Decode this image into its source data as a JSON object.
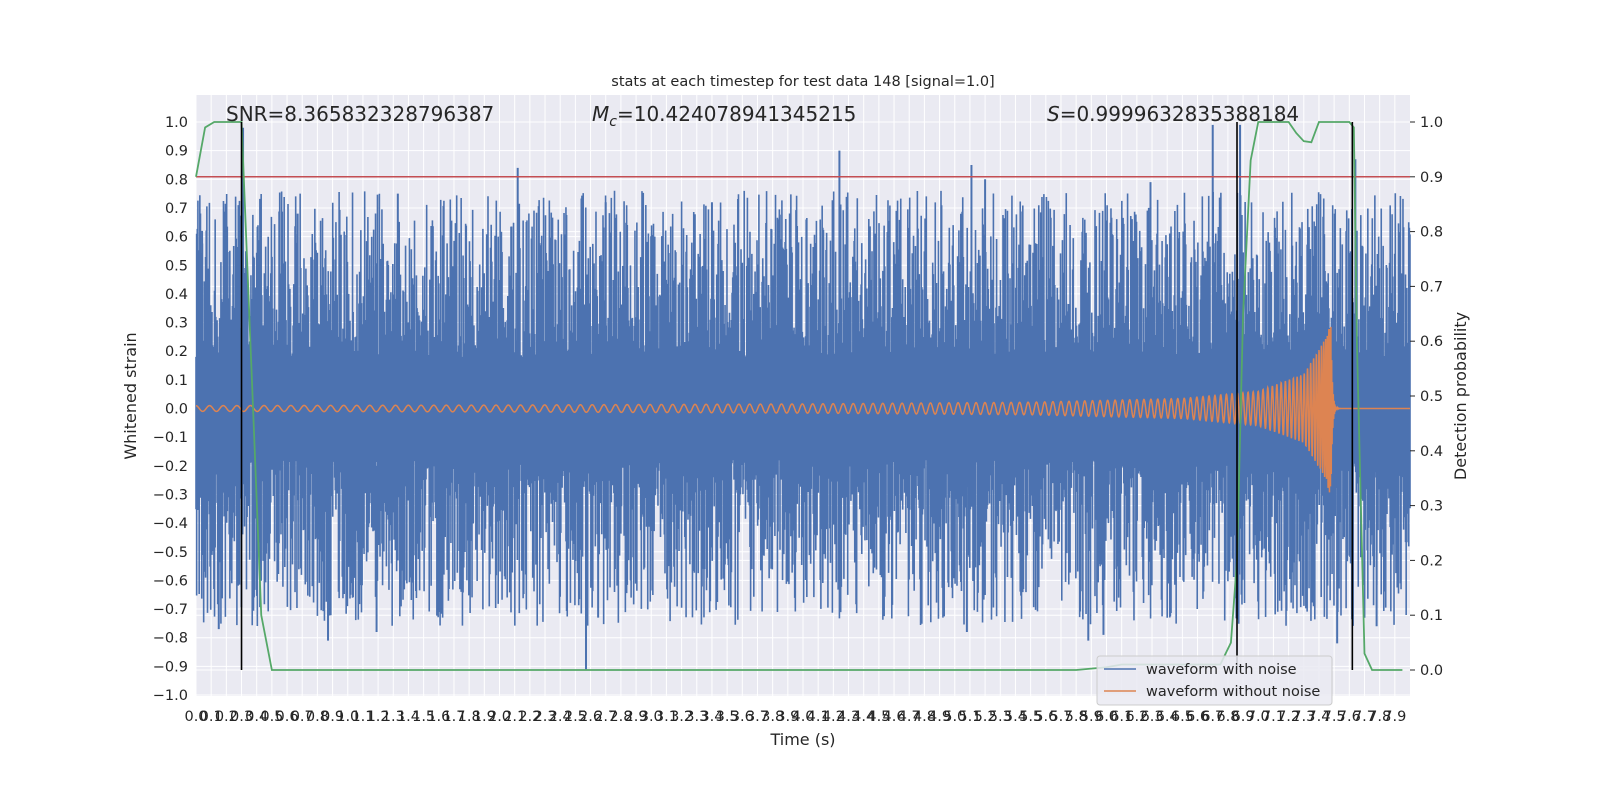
{
  "chart_data": {
    "type": "line",
    "title": "stats at each timestep for test data 148 [signal=1.0]",
    "xlabel": "Time (s)",
    "ylabel": "Whitened strain",
    "ylabel_right": "Detection probability",
    "xlim": [
      0.0,
      8.0
    ],
    "ylim": [
      -1.0,
      1.0
    ],
    "ylim_right": [
      -0.047,
      1.0
    ],
    "grid": true,
    "x_ticks": [
      "0.0",
      "0.1",
      "0.2",
      "0.3",
      "0.4",
      "0.5",
      "0.6",
      "0.7",
      "0.8",
      "0.9",
      "1.0",
      "1.1",
      "1.2",
      "1.3",
      "1.4",
      "1.5",
      "1.6",
      "1.7",
      "1.8",
      "1.9",
      "2.0",
      "2.1",
      "2.2",
      "2.3",
      "2.4",
      "2.5",
      "2.6",
      "2.7",
      "2.8",
      "2.9",
      "3.0",
      "3.1",
      "3.2",
      "3.3",
      "3.4",
      "3.5",
      "3.6",
      "3.7",
      "3.8",
      "3.9",
      "4.0",
      "4.1",
      "4.2",
      "4.3",
      "4.4",
      "4.5",
      "4.6",
      "4.7",
      "4.8",
      "4.9",
      "5.0",
      "5.1",
      "5.2",
      "5.3",
      "5.4",
      "5.5",
      "5.6",
      "5.7",
      "5.8",
      "5.9",
      "6.0",
      "6.1",
      "6.2",
      "6.3",
      "6.4",
      "6.5",
      "6.6",
      "6.7",
      "6.8",
      "6.9",
      "7.0",
      "7.1",
      "7.2",
      "7.3",
      "7.4",
      "7.5",
      "7.6",
      "7.7",
      "7.8",
      "7.9"
    ],
    "y_ticks_left": [
      "1.0",
      "0.9",
      "0.8",
      "0.7",
      "0.6",
      "0.5",
      "0.4",
      "0.3",
      "0.2",
      "0.1",
      "0.0",
      "−0.1",
      "−0.2",
      "−0.3",
      "−0.4",
      "−0.5",
      "−0.6",
      "−0.7",
      "−0.8",
      "−0.9",
      "−1.0"
    ],
    "y_ticks_right": [
      "1.0",
      "0.9",
      "0.8",
      "0.7",
      "0.6",
      "0.5",
      "0.4",
      "0.3",
      "0.2",
      "0.1",
      "0.0"
    ],
    "annotations": {
      "snr": "SNR=8.365832328796387",
      "mc_symbol": "M",
      "mc_sub": "c",
      "mc_value": "=10.424078941345215",
      "s_symbol": "S",
      "s_value": "=0.9999632835388184"
    },
    "legend": {
      "location": "lower right",
      "entries": [
        {
          "label": "waveform with noise",
          "color": "#4c72b0"
        },
        {
          "label": "waveform without noise",
          "color": "#dd8452"
        }
      ]
    },
    "series": [
      {
        "name": "waveform with noise",
        "color": "#4c72b0",
        "axis": "left",
        "typical_max": 0.48,
        "typical_min": -0.48,
        "peaks": [
          {
            "t": 0.04,
            "v": 0.62
          },
          {
            "t": 0.28,
            "v": 0.71
          },
          {
            "t": 0.31,
            "v": 0.98
          },
          {
            "t": 0.67,
            "v": 0.68
          },
          {
            "t": 1.33,
            "v": 0.75
          },
          {
            "t": 2.12,
            "v": 0.84
          },
          {
            "t": 2.7,
            "v": 0.72
          },
          {
            "t": 3.4,
            "v": 0.72
          },
          {
            "t": 4.24,
            "v": 0.9
          },
          {
            "t": 5.11,
            "v": 0.85
          },
          {
            "t": 5.2,
            "v": 0.8
          },
          {
            "t": 6.29,
            "v": 0.79
          },
          {
            "t": 6.7,
            "v": 0.99
          },
          {
            "t": 6.88,
            "v": 0.99
          },
          {
            "t": 7.64,
            "v": 0.87
          }
        ],
        "troughs": [
          {
            "t": 0.15,
            "v": -0.77
          },
          {
            "t": 0.87,
            "v": -0.81
          },
          {
            "t": 1.19,
            "v": -0.78
          },
          {
            "t": 2.57,
            "v": -0.91
          },
          {
            "t": 2.65,
            "v": -0.73
          },
          {
            "t": 5.08,
            "v": -0.78
          },
          {
            "t": 5.88,
            "v": -0.81
          },
          {
            "t": 5.98,
            "v": -0.79
          },
          {
            "t": 7.52,
            "v": -0.82
          },
          {
            "t": 7.78,
            "v": -0.76
          }
        ]
      },
      {
        "name": "waveform without noise",
        "color": "#dd8452",
        "axis": "left",
        "note": "chirp: amplitude grows toward merger, then ringdown to zero",
        "amplitude_points": [
          {
            "t": 0.0,
            "amp": 0.01
          },
          {
            "t": 2.0,
            "amp": 0.012
          },
          {
            "t": 4.0,
            "amp": 0.016
          },
          {
            "t": 5.5,
            "amp": 0.022
          },
          {
            "t": 6.5,
            "amp": 0.035
          },
          {
            "t": 7.0,
            "amp": 0.06
          },
          {
            "t": 7.3,
            "amp": 0.12
          },
          {
            "t": 7.45,
            "amp": 0.25
          },
          {
            "t": 7.48,
            "amp": 0.34
          }
        ],
        "merger_t": 7.48
      },
      {
        "name": "detection probability",
        "color": "#55a868",
        "axis": "right",
        "x": [
          0.0,
          0.06,
          0.12,
          0.25,
          0.3,
          0.38,
          0.43,
          0.5,
          1.0,
          2.0,
          3.0,
          4.0,
          5.0,
          5.8,
          6.0,
          6.1,
          6.5,
          6.75,
          6.82,
          6.86,
          6.9,
          6.95,
          7.0,
          7.2,
          7.25,
          7.3,
          7.35,
          7.4,
          7.6,
          7.63,
          7.65,
          7.7,
          7.75,
          7.85,
          7.95
        ],
        "y": [
          0.9,
          0.99,
          1.0,
          1.0,
          1.0,
          0.45,
          0.1,
          0.0,
          0.0,
          0.0,
          0.0,
          0.0,
          0.0,
          0.0,
          0.005,
          0.01,
          0.01,
          0.01,
          0.05,
          0.2,
          0.65,
          0.93,
          1.0,
          1.0,
          0.98,
          0.965,
          0.963,
          1.0,
          1.0,
          0.99,
          0.6,
          0.03,
          0.0,
          0.0,
          0.0
        ]
      },
      {
        "name": "threshold",
        "color": "#c44e52",
        "axis": "right",
        "y": 0.9
      }
    ],
    "vertical_markers_t": [
      0.3,
      6.86,
      7.62
    ]
  }
}
